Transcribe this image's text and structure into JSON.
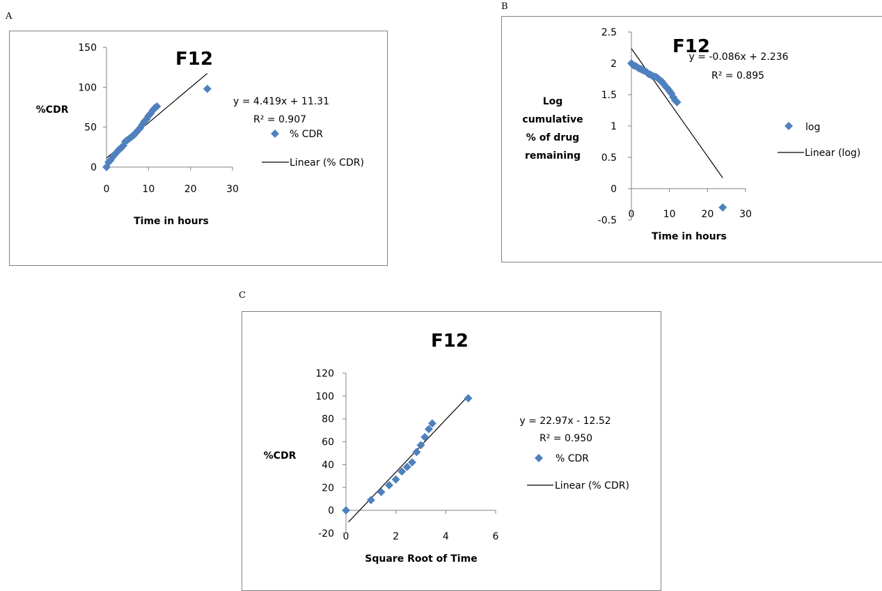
{
  "panels": [
    {
      "letter": "A",
      "chart_data": {
        "type": "scatter",
        "title": "F12",
        "xlabel": "Time in hours",
        "ylabel": "%CDR",
        "xlim": [
          0,
          30
        ],
        "ylim": [
          0,
          150
        ],
        "x_ticks": [
          "0",
          "10",
          "20",
          "30"
        ],
        "y_ticks": [
          "0",
          "50",
          "100",
          "150"
        ],
        "series": [
          {
            "name": "% CDR",
            "color": "#4f81bd",
            "marker": "diamond",
            "x": [
              0,
              0.5,
              1,
              1.5,
              2,
              2.5,
              3,
              3.5,
              4,
              4.5,
              5,
              5.5,
              6,
              6.5,
              7,
              7.5,
              8,
              8.5,
              9,
              9.5,
              10,
              10.5,
              11,
              11.5,
              12,
              24
            ],
            "y": [
              0,
              6,
              9,
              13,
              16,
              19,
              22,
              24,
              27,
              32,
              34,
              36,
              38,
              40,
              43,
              46,
              49,
              53,
              57,
              60,
              64,
              67,
              71,
              74,
              76,
              98
            ]
          }
        ],
        "fit": {
          "name": "Linear (% CDR)",
          "slope": 4.419,
          "intercept": 11.31,
          "x_range": [
            0,
            24
          ]
        },
        "equation": "y = 4.419x + 11.31",
        "r2": "R² = 0.907",
        "legend_position": "right",
        "grid": false
      }
    },
    {
      "letter": "B",
      "chart_data": {
        "type": "scatter",
        "title": "F12",
        "xlabel": "Time in hours",
        "ylabel_lines": [
          "Log",
          "cumulative",
          "% of drug",
          "remaining"
        ],
        "xlim": [
          0,
          30
        ],
        "ylim": [
          -0.5,
          2.5
        ],
        "x_ticks": [
          "0",
          "10",
          "20",
          "30"
        ],
        "y_ticks": [
          "-0.5",
          "0",
          "0.5",
          "1",
          "1.5",
          "2",
          "2.5"
        ],
        "series": [
          {
            "name": "log",
            "color": "#4f81bd",
            "marker": "diamond",
            "x": [
              0,
              0.5,
              1,
              1.5,
              2,
              2.5,
              3,
              3.5,
              4,
              4.5,
              5,
              5.5,
              6,
              6.5,
              7,
              7.5,
              8,
              8.5,
              9,
              9.5,
              10,
              10.5,
              11,
              11.5,
              12,
              24
            ],
            "y": [
              2.0,
              1.97,
              1.96,
              1.94,
              1.92,
              1.91,
              1.89,
              1.88,
              1.86,
              1.83,
              1.82,
              1.8,
              1.79,
              1.78,
              1.76,
              1.73,
              1.71,
              1.67,
              1.63,
              1.6,
              1.56,
              1.52,
              1.46,
              1.41,
              1.38,
              -0.3
            ]
          }
        ],
        "fit": {
          "name": "Linear (log)",
          "slope": -0.086,
          "intercept": 2.236,
          "x_range": [
            0,
            24
          ]
        },
        "equation": "y = -0.086x + 2.236",
        "r2": "R² = 0.895",
        "legend_position": "right",
        "grid": false
      }
    },
    {
      "letter": "C",
      "chart_data": {
        "type": "scatter",
        "title": "F12",
        "xlabel": "Square Root of Time",
        "ylabel": "%CDR",
        "xlim": [
          0,
          6
        ],
        "ylim": [
          -20,
          120
        ],
        "x_ticks": [
          "0",
          "2",
          "4",
          "6"
        ],
        "y_ticks": [
          "-20",
          "0",
          "20",
          "40",
          "60",
          "80",
          "100",
          "120"
        ],
        "series": [
          {
            "name": "% CDR",
            "color": "#4f81bd",
            "marker": "diamond",
            "x": [
              0,
              1,
              1.41,
              1.73,
              2,
              2.24,
              2.45,
              2.65,
              2.83,
              3,
              3.16,
              3.32,
              3.46,
              4.9
            ],
            "y": [
              0,
              9,
              16,
              22,
              27,
              34,
              38,
              42,
              51,
              57,
              64,
              71,
              76,
              98
            ]
          }
        ],
        "fit": {
          "name": "Linear (% CDR)",
          "slope": 22.97,
          "intercept": -12.52,
          "x_range": [
            0.1,
            4.9
          ]
        },
        "equation": "y = 22.97x - 12.52",
        "r2": "R² = 0.950",
        "legend_position": "right",
        "grid": false
      }
    }
  ]
}
